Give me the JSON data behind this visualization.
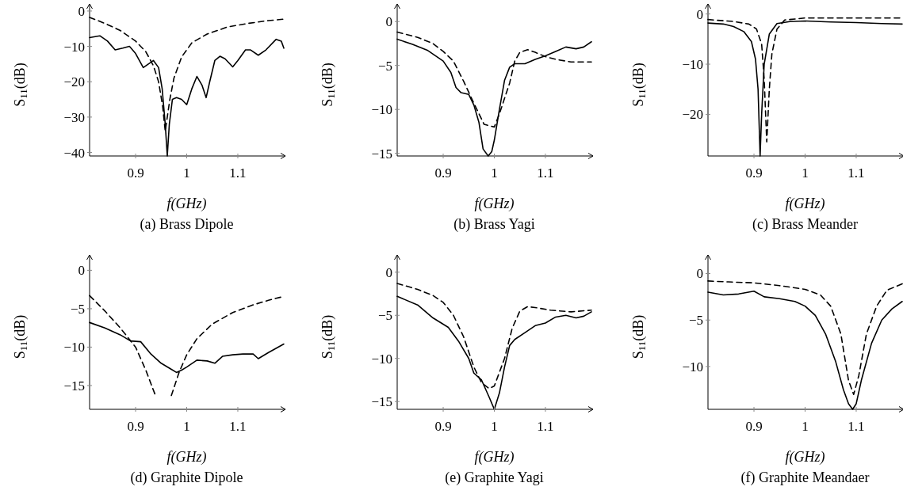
{
  "chart_data": [
    {
      "type": "line",
      "title": "(a) Brass Dipole",
      "xlabel": "f(GHz)",
      "ylabel": "S$_{11}$(dB)",
      "xlim": [
        0.81,
        1.19
      ],
      "ylim": [
        -41,
        2
      ],
      "xticks": [
        0.9,
        1,
        1.1
      ],
      "yticks": [
        0,
        -10,
        -20,
        -30,
        -40
      ],
      "series": [
        {
          "color": "#000000",
          "line_style": "solid",
          "x": [
            0.81,
            0.83,
            0.845,
            0.86,
            0.875,
            0.888,
            0.9,
            0.915,
            0.925,
            0.935,
            0.945,
            0.952,
            0.958,
            0.962,
            0.966,
            0.972,
            0.98,
            0.99,
            1,
            1.01,
            1.02,
            1.03,
            1.038,
            1.045,
            1.055,
            1.065,
            1.075,
            1.09,
            1.1,
            1.115,
            1.125,
            1.14,
            1.155,
            1.175,
            1.185,
            1.19
          ],
          "values": [
            -7.5,
            -7,
            -8.5,
            -11,
            -10.5,
            -10,
            -12,
            -16,
            -15,
            -14,
            -16,
            -22,
            -32,
            -41,
            -32,
            -25,
            -24.5,
            -25,
            -26.5,
            -22,
            -18.5,
            -21,
            -24.5,
            -20,
            -14,
            -12.8,
            -13.5,
            -15.8,
            -14,
            -11,
            -11,
            -12.5,
            -11,
            -8,
            -8.5,
            -10.5
          ]
        },
        {
          "color": "#000000",
          "line_style": "dashed",
          "x": [
            0.81,
            0.84,
            0.87,
            0.9,
            0.92,
            0.935,
            0.945,
            0.953,
            0.958,
            0.962,
            0.967,
            0.975,
            0.99,
            1.01,
            1.04,
            1.08,
            1.12,
            1.16,
            1.19
          ],
          "values": [
            -1.8,
            -3.5,
            -5.5,
            -8.5,
            -11.5,
            -15.5,
            -20,
            -27,
            -34,
            -30,
            -25,
            -19,
            -13,
            -9,
            -6.5,
            -4.5,
            -3.5,
            -2.7,
            -2.3
          ]
        }
      ]
    },
    {
      "type": "line",
      "title": "(b) Brass Yagi",
      "xlabel": "f(GHz)",
      "ylabel": "S$_{11}$(dB)",
      "xlim": [
        0.81,
        1.19
      ],
      "ylim": [
        -15.3,
        2
      ],
      "xticks": [
        0.9,
        1,
        1.1
      ],
      "yticks": [
        0,
        -5,
        -10,
        -15
      ],
      "series": [
        {
          "color": "#000000",
          "line_style": "solid",
          "x": [
            0.81,
            0.84,
            0.87,
            0.9,
            0.915,
            0.925,
            0.935,
            0.95,
            0.96,
            0.97,
            0.978,
            0.988,
            0.995,
            1,
            1.01,
            1.02,
            1.03,
            1.04,
            1.06,
            1.08,
            1.1,
            1.12,
            1.14,
            1.16,
            1.175,
            1.19
          ],
          "values": [
            -2,
            -2.6,
            -3.3,
            -4.5,
            -5.8,
            -7.5,
            -8.1,
            -8.3,
            -9.5,
            -11.5,
            -14.5,
            -15.3,
            -14.8,
            -13.5,
            -10,
            -6.7,
            -5.2,
            -4.8,
            -4.8,
            -4.3,
            -3.9,
            -3.4,
            -2.9,
            -3.1,
            -2.9,
            -2.3
          ]
        },
        {
          "color": "#000000",
          "line_style": "dashed",
          "x": [
            0.81,
            0.85,
            0.88,
            0.9,
            0.92,
            0.94,
            0.96,
            0.98,
            1,
            1.01,
            1.03,
            1.04,
            1.05,
            1.065,
            1.08,
            1.1,
            1.12,
            1.15,
            1.19
          ],
          "values": [
            -1.2,
            -1.8,
            -2.5,
            -3.4,
            -4.5,
            -6.8,
            -9.3,
            -11.7,
            -12,
            -10.5,
            -7,
            -4.5,
            -3.5,
            -3.2,
            -3.5,
            -4,
            -4.3,
            -4.6,
            -4.6
          ]
        }
      ]
    },
    {
      "type": "line",
      "title": "(c) Brass Meander",
      "xlabel": "f(GHz)",
      "ylabel": "S$_{11}$(dB)",
      "xlim": [
        0.81,
        1.19
      ],
      "ylim": [
        -28.3,
        2
      ],
      "xticks": [
        0.9,
        1,
        1.1
      ],
      "yticks": [
        0,
        -10,
        -20
      ],
      "series": [
        {
          "color": "#000000",
          "line_style": "solid",
          "x": [
            0.81,
            0.84,
            0.86,
            0.88,
            0.895,
            0.903,
            0.908,
            0.912,
            0.915,
            0.92,
            0.93,
            0.945,
            0.97,
            1,
            1.05,
            1.1,
            1.15,
            1.19
          ],
          "values": [
            -1.8,
            -2,
            -2.5,
            -3.5,
            -5.5,
            -9,
            -15,
            -28.3,
            -20,
            -10,
            -4,
            -1.9,
            -1.5,
            -1.4,
            -1.6,
            -1.7,
            -1.9,
            -2
          ]
        },
        {
          "color": "#000000",
          "line_style": "dashed",
          "x": [
            0.81,
            0.86,
            0.89,
            0.905,
            0.915,
            0.92,
            0.925,
            0.93,
            0.935,
            0.945,
            0.96,
            1,
            1.1,
            1.19
          ],
          "values": [
            -1.1,
            -1.5,
            -2,
            -3,
            -6,
            -13,
            -25.5,
            -15,
            -8,
            -3,
            -1.2,
            -0.8,
            -0.8,
            -0.8
          ]
        }
      ]
    },
    {
      "type": "line",
      "title": "(d) Graphite Dipole",
      "xlabel": "f(GHz)",
      "ylabel": "S$_{11}$(dB)",
      "xlim": [
        0.81,
        1.19
      ],
      "ylim": [
        -18.1,
        2
      ],
      "xticks": [
        0.9,
        1,
        1.1
      ],
      "yticks": [
        0,
        -5,
        -10,
        -15
      ],
      "series": [
        {
          "color": "#000000",
          "line_style": "solid",
          "x": [
            0.81,
            0.84,
            0.87,
            0.89,
            0.91,
            0.93,
            0.95,
            0.97,
            0.98,
            0.99,
            1,
            1.02,
            1.04,
            1.055,
            1.07,
            1.09,
            1.11,
            1.13,
            1.14,
            1.16,
            1.19
          ],
          "values": [
            -6.8,
            -7.5,
            -8.4,
            -9.2,
            -9.3,
            -10.9,
            -12.1,
            -12.9,
            -13.3,
            -13,
            -12.6,
            -11.7,
            -11.8,
            -12.1,
            -11.2,
            -11,
            -10.9,
            -10.9,
            -11.5,
            -10.7,
            -9.6
          ]
        },
        {
          "color": "#000000",
          "line_style": "dashed",
          "x": [
            0.81,
            0.84,
            0.87,
            0.9,
            0.92,
            0.94,
            0.95,
            0.96,
            0.97,
            0.985,
            1,
            1.02,
            1.05,
            1.09,
            1.13,
            1.16,
            1.19
          ],
          "values": [
            -3.3,
            -5.3,
            -7.5,
            -10,
            -13,
            -16.5,
            null,
            null,
            -16.3,
            -13.3,
            -11,
            -8.9,
            -7,
            -5.5,
            -4.5,
            -3.9,
            -3.4
          ]
        }
      ]
    },
    {
      "type": "line",
      "title": "(e) Graphite Yagi",
      "xlabel": "f(GHz)",
      "ylabel": "S$_{11}$(dB)",
      "xlim": [
        0.81,
        1.19
      ],
      "ylim": [
        -15.9,
        2
      ],
      "xticks": [
        0.9,
        1,
        1.1
      ],
      "yticks": [
        0,
        -5,
        -10,
        -15
      ],
      "series": [
        {
          "color": "#000000",
          "line_style": "solid",
          "x": [
            0.81,
            0.85,
            0.88,
            0.91,
            0.93,
            0.95,
            0.96,
            0.975,
            0.99,
            1,
            1.01,
            1.02,
            1.03,
            1.04,
            1.06,
            1.08,
            1.1,
            1.12,
            1.14,
            1.16,
            1.175,
            1.19
          ],
          "values": [
            -2.8,
            -3.8,
            -5.3,
            -6.4,
            -8,
            -10,
            -11.7,
            -12.5,
            -14.5,
            -15.9,
            -14,
            -11,
            -8.5,
            -7.8,
            -7,
            -6.2,
            -5.9,
            -5.2,
            -5,
            -5.3,
            -5.1,
            -4.6
          ]
        },
        {
          "color": "#000000",
          "line_style": "dashed",
          "x": [
            0.81,
            0.85,
            0.88,
            0.9,
            0.92,
            0.94,
            0.96,
            0.975,
            0.99,
            1,
            1.02,
            1.035,
            1.05,
            1.065,
            1.08,
            1.11,
            1.15,
            1.19
          ],
          "values": [
            -1.3,
            -2,
            -2.7,
            -3.5,
            -5,
            -7.5,
            -11,
            -12.8,
            -13.5,
            -13.2,
            -10,
            -6.5,
            -4.5,
            -4,
            -4.1,
            -4.4,
            -4.6,
            -4.4
          ]
        }
      ]
    },
    {
      "type": "line",
      "title": "(f) Graphite Meandaer",
      "xlabel": "f(GHz)",
      "ylabel": "S$_{11}$(dB)",
      "xlim": [
        0.81,
        1.19
      ],
      "ylim": [
        -14.6,
        2
      ],
      "xticks": [
        0.9,
        1,
        1.1
      ],
      "yticks": [
        0,
        -5,
        -10
      ],
      "series": [
        {
          "color": "#000000",
          "line_style": "solid",
          "x": [
            0.81,
            0.84,
            0.87,
            0.9,
            0.92,
            0.95,
            0.98,
            1,
            1.02,
            1.04,
            1.06,
            1.075,
            1.085,
            1.093,
            1.1,
            1.11,
            1.13,
            1.15,
            1.17,
            1.19
          ],
          "values": [
            -2,
            -2.3,
            -2.2,
            -1.9,
            -2.5,
            -2.7,
            -3,
            -3.5,
            -4.5,
            -6.5,
            -9.5,
            -12.5,
            -14,
            -14.6,
            -14,
            -11.5,
            -7.5,
            -5,
            -3.8,
            -3
          ]
        },
        {
          "color": "#000000",
          "line_style": "dashed",
          "x": [
            0.81,
            0.85,
            0.9,
            0.95,
            1,
            1.03,
            1.05,
            1.07,
            1.085,
            1.095,
            1.105,
            1.12,
            1.14,
            1.16,
            1.19
          ],
          "values": [
            -0.8,
            -0.9,
            -1,
            -1.3,
            -1.7,
            -2.3,
            -3.5,
            -6.5,
            -11.5,
            -13,
            -11,
            -6.5,
            -3.5,
            -1.8,
            -1.1
          ]
        }
      ]
    }
  ]
}
